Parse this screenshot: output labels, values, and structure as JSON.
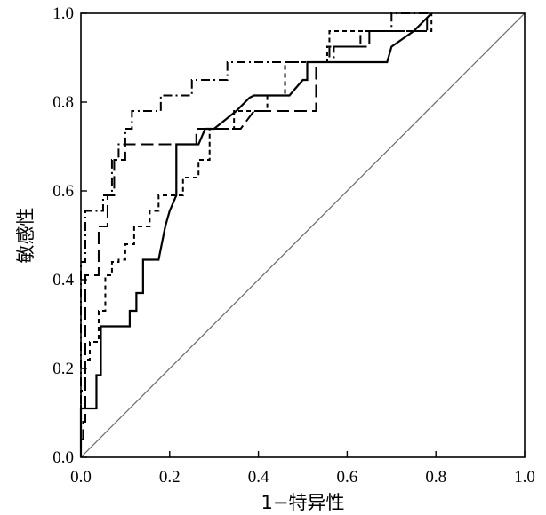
{
  "chart_data": {
    "type": "line",
    "title": "",
    "xlabel": "1−特异性",
    "ylabel": "敏感性",
    "xlim": [
      0,
      1
    ],
    "ylim": [
      0,
      1
    ],
    "grid": false,
    "x_ticks": [
      0.0,
      0.2,
      0.4,
      0.6,
      0.8,
      1.0
    ],
    "y_ticks": [
      0.0,
      0.2,
      0.4,
      0.6,
      0.8,
      1.0
    ],
    "x_tick_labels": [
      "0.0",
      "0.2",
      "0.4",
      "0.6",
      "0.8",
      "1.0"
    ],
    "y_tick_labels": [
      "0.0",
      "0.2",
      "0.4",
      "0.6",
      "0.8",
      "1.0"
    ],
    "reference_line": {
      "x": [
        0,
        1
      ],
      "y": [
        0,
        1
      ],
      "color": "#666666"
    },
    "series": [
      {
        "style": "solid",
        "color": "#000000",
        "x": [
          0.0,
          0.0,
          0.01,
          0.01,
          0.035,
          0.035,
          0.045,
          0.045,
          0.095,
          0.095,
          0.11,
          0.11,
          0.125,
          0.125,
          0.14,
          0.14,
          0.155,
          0.155,
          0.175,
          0.175,
          0.19,
          0.2,
          0.215,
          0.215,
          0.265,
          0.28,
          0.3,
          0.35,
          0.38,
          0.38,
          0.39,
          0.47,
          0.5,
          0.51,
          0.51,
          0.69,
          0.7,
          0.7,
          0.75,
          0.75,
          0.79,
          0.79
        ],
        "y": [
          0.0,
          0.11,
          0.11,
          0.11,
          0.11,
          0.185,
          0.185,
          0.295,
          0.295,
          0.295,
          0.295,
          0.33,
          0.33,
          0.37,
          0.37,
          0.445,
          0.445,
          0.445,
          0.445,
          0.445,
          0.52,
          0.555,
          0.59,
          0.705,
          0.705,
          0.74,
          0.74,
          0.78,
          0.81,
          0.81,
          0.815,
          0.815,
          0.85,
          0.85,
          0.89,
          0.89,
          0.925,
          0.925,
          0.96,
          0.96,
          1.0,
          1.0
        ]
      },
      {
        "style": "short-dash",
        "color": "#000000",
        "x": [
          0.0,
          0.0,
          0.01,
          0.01,
          0.02,
          0.02,
          0.04,
          0.04,
          0.055,
          0.055,
          0.07,
          0.07,
          0.085,
          0.085,
          0.1,
          0.1,
          0.12,
          0.12,
          0.14,
          0.14,
          0.155,
          0.155,
          0.175,
          0.175,
          0.2,
          0.2,
          0.23,
          0.23,
          0.265,
          0.265,
          0.29,
          0.29,
          0.32,
          0.32,
          0.345,
          0.345,
          0.36,
          0.42,
          0.42,
          0.46,
          0.46,
          0.555,
          0.555,
          0.56,
          0.56,
          0.76,
          0.76,
          0.79,
          0.79
        ],
        "y": [
          0.0,
          0.15,
          0.15,
          0.22,
          0.22,
          0.26,
          0.26,
          0.33,
          0.33,
          0.41,
          0.41,
          0.44,
          0.44,
          0.445,
          0.445,
          0.48,
          0.48,
          0.52,
          0.52,
          0.52,
          0.52,
          0.555,
          0.555,
          0.59,
          0.59,
          0.59,
          0.59,
          0.63,
          0.63,
          0.67,
          0.67,
          0.74,
          0.74,
          0.74,
          0.74,
          0.78,
          0.78,
          0.78,
          0.815,
          0.815,
          0.89,
          0.89,
          0.925,
          0.925,
          0.96,
          0.96,
          0.96,
          0.96,
          1.0
        ]
      },
      {
        "style": "long-dash",
        "color": "#000000",
        "x": [
          0.0,
          0.0,
          0.005,
          0.005,
          0.01,
          0.01,
          0.02,
          0.02,
          0.04,
          0.04,
          0.06,
          0.06,
          0.075,
          0.075,
          0.1,
          0.1,
          0.11,
          0.11,
          0.21,
          0.22,
          0.22,
          0.26,
          0.26,
          0.36,
          0.39,
          0.39,
          0.53,
          0.53,
          0.56,
          0.56,
          0.65,
          0.65,
          0.73,
          0.73,
          0.78,
          0.78
        ],
        "y": [
          0.0,
          0.04,
          0.04,
          0.08,
          0.08,
          0.41,
          0.41,
          0.41,
          0.41,
          0.52,
          0.52,
          0.59,
          0.59,
          0.67,
          0.67,
          0.705,
          0.705,
          0.705,
          0.705,
          0.705,
          0.705,
          0.705,
          0.74,
          0.74,
          0.78,
          0.78,
          0.78,
          0.89,
          0.89,
          0.925,
          0.925,
          0.96,
          0.96,
          0.96,
          0.96,
          1.0
        ]
      },
      {
        "style": "dash-dot",
        "color": "#000000",
        "x": [
          0.0,
          0.0,
          0.01,
          0.01,
          0.04,
          0.04,
          0.05,
          0.05,
          0.07,
          0.07,
          0.085,
          0.085,
          0.1,
          0.1,
          0.115,
          0.115,
          0.13,
          0.13,
          0.17,
          0.17,
          0.18,
          0.18,
          0.24,
          0.24,
          0.25,
          0.25,
          0.33,
          0.33,
          0.55,
          0.55,
          0.57,
          0.57,
          0.63,
          0.63,
          0.7,
          0.7,
          0.79,
          0.79
        ],
        "y": [
          0.0,
          0.44,
          0.44,
          0.555,
          0.555,
          0.555,
          0.555,
          0.59,
          0.59,
          0.67,
          0.67,
          0.705,
          0.705,
          0.74,
          0.74,
          0.78,
          0.78,
          0.78,
          0.78,
          0.78,
          0.78,
          0.815,
          0.815,
          0.815,
          0.815,
          0.85,
          0.85,
          0.89,
          0.89,
          0.89,
          0.89,
          0.925,
          0.925,
          0.96,
          0.96,
          1.0,
          1.0,
          1.0
        ]
      }
    ]
  }
}
